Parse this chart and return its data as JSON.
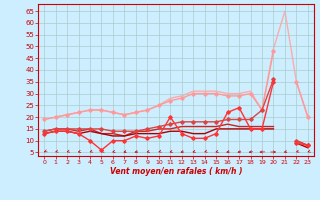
{
  "x": [
    0,
    1,
    2,
    3,
    4,
    5,
    6,
    7,
    8,
    9,
    10,
    11,
    12,
    13,
    14,
    15,
    16,
    17,
    18,
    19,
    20,
    21,
    22,
    23
  ],
  "lines": [
    {
      "y": [
        19,
        20,
        21,
        22,
        23,
        23,
        22,
        21,
        22,
        23,
        25,
        28,
        29,
        31,
        31,
        31,
        30,
        30,
        31,
        23,
        49,
        65,
        35,
        20
      ],
      "color": "#ffaaaa",
      "lw": 1.0,
      "marker": null,
      "zorder": 1
    },
    {
      "y": [
        19,
        20,
        21,
        22,
        23,
        23,
        22,
        21,
        22,
        23,
        25,
        27,
        28,
        30,
        30,
        30,
        29,
        29,
        30,
        23,
        48,
        null,
        35,
        20
      ],
      "color": "#ff9999",
      "lw": 1.0,
      "marker": "D",
      "ms": 1.8,
      "zorder": 2
    },
    {
      "y": [
        14,
        15,
        15,
        15,
        15,
        15,
        14,
        14,
        14,
        15,
        16,
        17,
        18,
        18,
        18,
        18,
        19,
        19,
        19,
        23,
        36,
        null,
        10,
        8
      ],
      "color": "#dd4444",
      "lw": 1.0,
      "marker": "D",
      "ms": 1.8,
      "zorder": 3
    },
    {
      "y": [
        14,
        15,
        15,
        14,
        15,
        13,
        13,
        12,
        14,
        14,
        15,
        15,
        16,
        16,
        16,
        16,
        17,
        16,
        16,
        16,
        16,
        null,
        10,
        8
      ],
      "color": "#cc2222",
      "lw": 1.0,
      "marker": null,
      "zorder": 2
    },
    {
      "y": [
        13,
        14,
        14,
        13,
        10,
        6,
        10,
        10,
        12,
        11,
        12,
        20,
        13,
        11,
        11,
        13,
        22,
        24,
        15,
        15,
        35,
        null,
        9,
        8
      ],
      "color": "#ff3333",
      "lw": 1.0,
      "marker": "D",
      "ms": 1.8,
      "zorder": 4
    },
    {
      "y": [
        13,
        14,
        14,
        13,
        14,
        13,
        12,
        12,
        13,
        13,
        13,
        14,
        14,
        13,
        13,
        15,
        15,
        15,
        15,
        15,
        15,
        null,
        9,
        7
      ],
      "color": "#aa0000",
      "lw": 1.0,
      "marker": null,
      "zorder": 2
    }
  ],
  "xlabel": "Vent moyen/en rafales ( km/h )",
  "ylabel_ticks": [
    5,
    10,
    15,
    20,
    25,
    30,
    35,
    40,
    45,
    50,
    55,
    60,
    65
  ],
  "ylim": [
    3.5,
    68
  ],
  "xlim": [
    -0.5,
    23.5
  ],
  "bg_color": "#cceeff",
  "grid_color": "#aacccc",
  "label_color": "#cc0000",
  "axis_color": "#cc0000",
  "arrow_angles": [
    -150,
    -145,
    -145,
    -140,
    -145,
    -145,
    -140,
    -135,
    -130,
    -140,
    -145,
    -140,
    -130,
    -140,
    -145,
    -140,
    -130,
    -125,
    -120,
    -100,
    90,
    -135,
    -145,
    -145
  ]
}
